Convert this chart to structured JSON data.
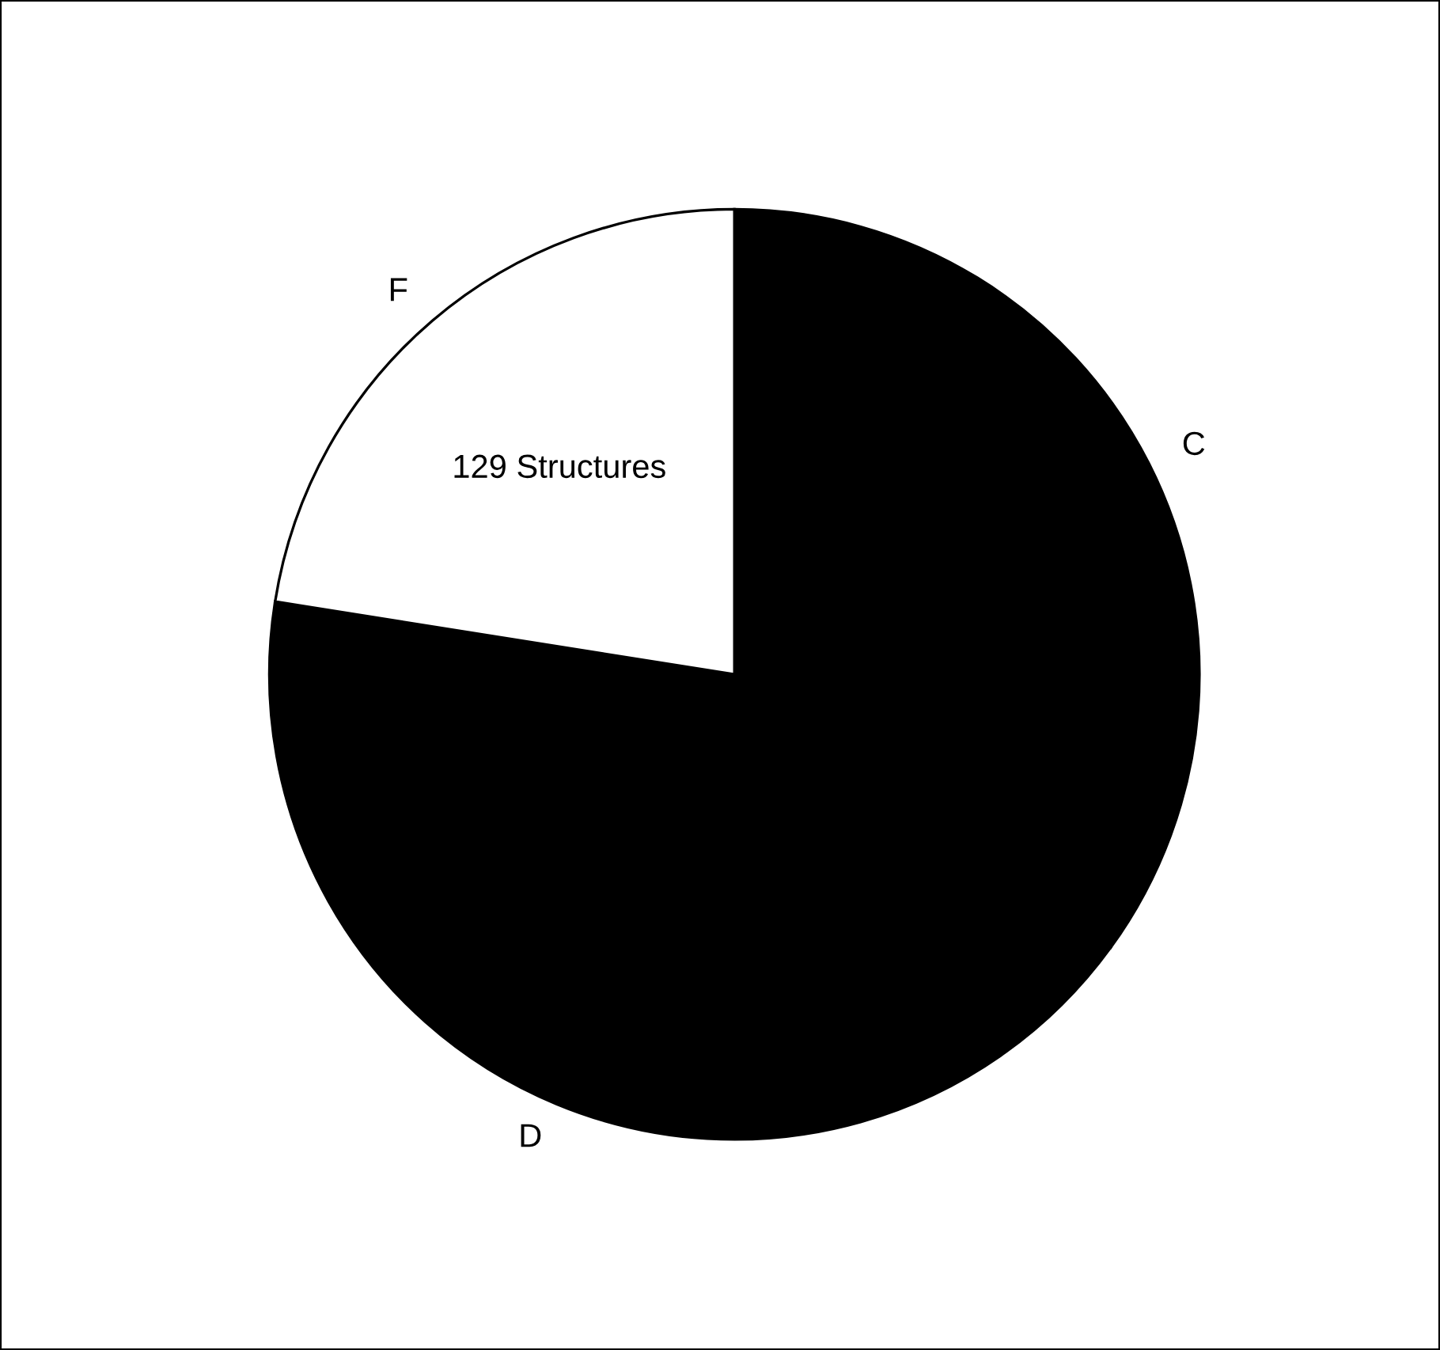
{
  "chart_data": {
    "type": "pie",
    "categories": [
      "C",
      "D",
      "F"
    ],
    "values": [
      35,
      42.5,
      22.5
    ],
    "colors": [
      "#000000",
      "#000000",
      "#ffffff"
    ],
    "annotations": [
      "129 Structures"
    ]
  }
}
